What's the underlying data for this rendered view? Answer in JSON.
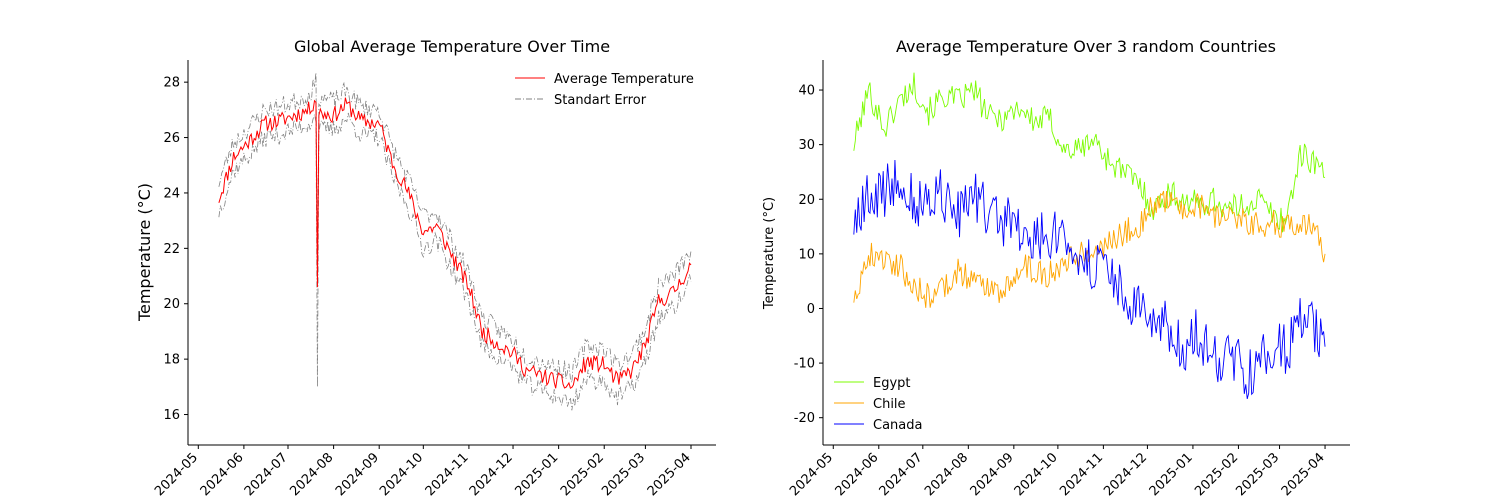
{
  "chart_data": [
    {
      "type": "line",
      "title": "Global Average Temperature Over Time",
      "xlabel": "",
      "ylabel": "Temperature (°C)",
      "x_ticks": [
        "2024-05",
        "2024-06",
        "2024-07",
        "2024-08",
        "2024-09",
        "2024-10",
        "2024-11",
        "2024-12",
        "2025-01",
        "2025-02",
        "2025-03",
        "2025-04"
      ],
      "xlim": [
        "2024-04-24",
        "2025-04-18"
      ],
      "ylim": [
        14.9,
        28.8
      ],
      "y_ticks": [
        16,
        18,
        20,
        22,
        24,
        26,
        28
      ],
      "legend_position": "top-right",
      "grid": false,
      "series": [
        {
          "name": "Average Temperature",
          "color": "#ff0000",
          "style": "solid",
          "x": [
            "2024-05-15",
            "2024-05-25",
            "2024-06-05",
            "2024-06-15",
            "2024-06-25",
            "2024-07-05",
            "2024-07-15",
            "2024-07-20",
            "2024-07-21",
            "2024-07-22",
            "2024-08-01",
            "2024-08-10",
            "2024-08-20",
            "2024-09-01",
            "2024-09-10",
            "2024-09-20",
            "2024-10-01",
            "2024-10-10",
            "2024-10-20",
            "2024-11-01",
            "2024-11-10",
            "2024-11-20",
            "2024-12-01",
            "2024-12-10",
            "2024-12-20",
            "2025-01-01",
            "2025-01-10",
            "2025-01-20",
            "2025-02-01",
            "2025-02-10",
            "2025-02-20",
            "2025-03-01",
            "2025-03-10",
            "2025-03-20",
            "2025-04-01"
          ],
          "y": [
            23.8,
            25.3,
            25.9,
            26.5,
            26.6,
            26.8,
            27.0,
            27.4,
            20.6,
            26.9,
            26.8,
            27.2,
            26.6,
            26.5,
            25.1,
            24.1,
            22.6,
            22.8,
            21.8,
            20.6,
            19.0,
            18.6,
            18.2,
            17.6,
            17.4,
            17.2,
            17.0,
            17.9,
            17.8,
            17.2,
            17.6,
            18.5,
            20.1,
            20.4,
            21.4
          ]
        },
        {
          "name": "Standart Error",
          "color": "#808080",
          "style": "dashdot",
          "upper": [
            24.4,
            25.8,
            26.4,
            27.0,
            27.1,
            27.3,
            27.5,
            28.0,
            21.3,
            27.5,
            27.3,
            27.7,
            27.1,
            27.0,
            25.6,
            24.6,
            23.2,
            23.3,
            22.3,
            21.1,
            19.5,
            19.1,
            18.7,
            18.1,
            17.9,
            17.7,
            17.5,
            18.5,
            18.4,
            17.8,
            18.2,
            19.1,
            20.7,
            21.0,
            21.9
          ],
          "lower": [
            23.3,
            24.8,
            25.4,
            26.0,
            26.1,
            26.3,
            26.5,
            26.8,
            17.0,
            26.3,
            26.3,
            26.7,
            26.1,
            26.0,
            24.6,
            23.6,
            22.0,
            22.3,
            21.3,
            20.1,
            18.5,
            18.1,
            17.7,
            17.1,
            16.9,
            16.6,
            16.4,
            17.3,
            17.2,
            16.6,
            17.0,
            17.9,
            19.5,
            19.8,
            20.8
          ]
        }
      ]
    },
    {
      "type": "line",
      "title": "Average Temperature Over 3 random Countries",
      "xlabel": "",
      "ylabel": "Temperature (°C)",
      "x_ticks": [
        "2024-05",
        "2024-06",
        "2024-07",
        "2024-08",
        "2024-09",
        "2024-10",
        "2024-11",
        "2024-12",
        "2025-01",
        "2025-02",
        "2025-03",
        "2025-04"
      ],
      "xlim": [
        "2024-04-24",
        "2025-04-18"
      ],
      "ylim": [
        -25,
        45.5
      ],
      "y_ticks": [
        -20,
        -10,
        0,
        10,
        20,
        30,
        40
      ],
      "legend_position": "bottom-left",
      "grid": false,
      "x": [
        "2024-05-15",
        "2024-05-25",
        "2024-06-05",
        "2024-06-15",
        "2024-06-25",
        "2024-07-05",
        "2024-07-15",
        "2024-07-25",
        "2024-08-05",
        "2024-08-15",
        "2024-08-25",
        "2024-09-05",
        "2024-09-15",
        "2024-09-25",
        "2024-10-05",
        "2024-10-15",
        "2024-10-25",
        "2024-11-05",
        "2024-11-15",
        "2024-11-25",
        "2024-12-05",
        "2024-12-15",
        "2024-12-25",
        "2025-01-05",
        "2025-01-15",
        "2025-01-25",
        "2025-02-05",
        "2025-02-15",
        "2025-02-25",
        "2025-03-05",
        "2025-03-15",
        "2025-03-25",
        "2025-04-01"
      ],
      "series": [
        {
          "name": "Egypt",
          "color": "#7cfc00",
          "values": [
            30,
            40,
            33,
            38,
            41,
            36,
            39,
            38,
            40,
            35,
            35,
            37,
            34,
            35,
            29,
            29,
            31,
            27,
            25,
            23,
            18,
            21,
            20,
            19,
            20,
            18,
            19,
            20,
            17,
            16,
            28,
            27,
            24
          ]
        },
        {
          "name": "Chile",
          "color": "#ffa500",
          "values": [
            2,
            10,
            9,
            8,
            4,
            2,
            4,
            7,
            5,
            4,
            3,
            8,
            7,
            6,
            9,
            10,
            11,
            12,
            14,
            15,
            19,
            20,
            18,
            19,
            17,
            18,
            16,
            15,
            16,
            15,
            16,
            14,
            10
          ]
        },
        {
          "name": "Canada",
          "color": "#0000ff",
          "values": [
            15,
            20,
            21,
            25,
            19,
            20,
            21,
            17,
            20,
            17,
            16,
            15,
            12,
            14,
            12,
            10,
            8,
            5,
            3,
            0,
            -5,
            -3,
            -8,
            -4,
            -10,
            -8,
            -12,
            -10,
            -6,
            -8,
            -2,
            -4,
            -7
          ]
        }
      ]
    }
  ]
}
